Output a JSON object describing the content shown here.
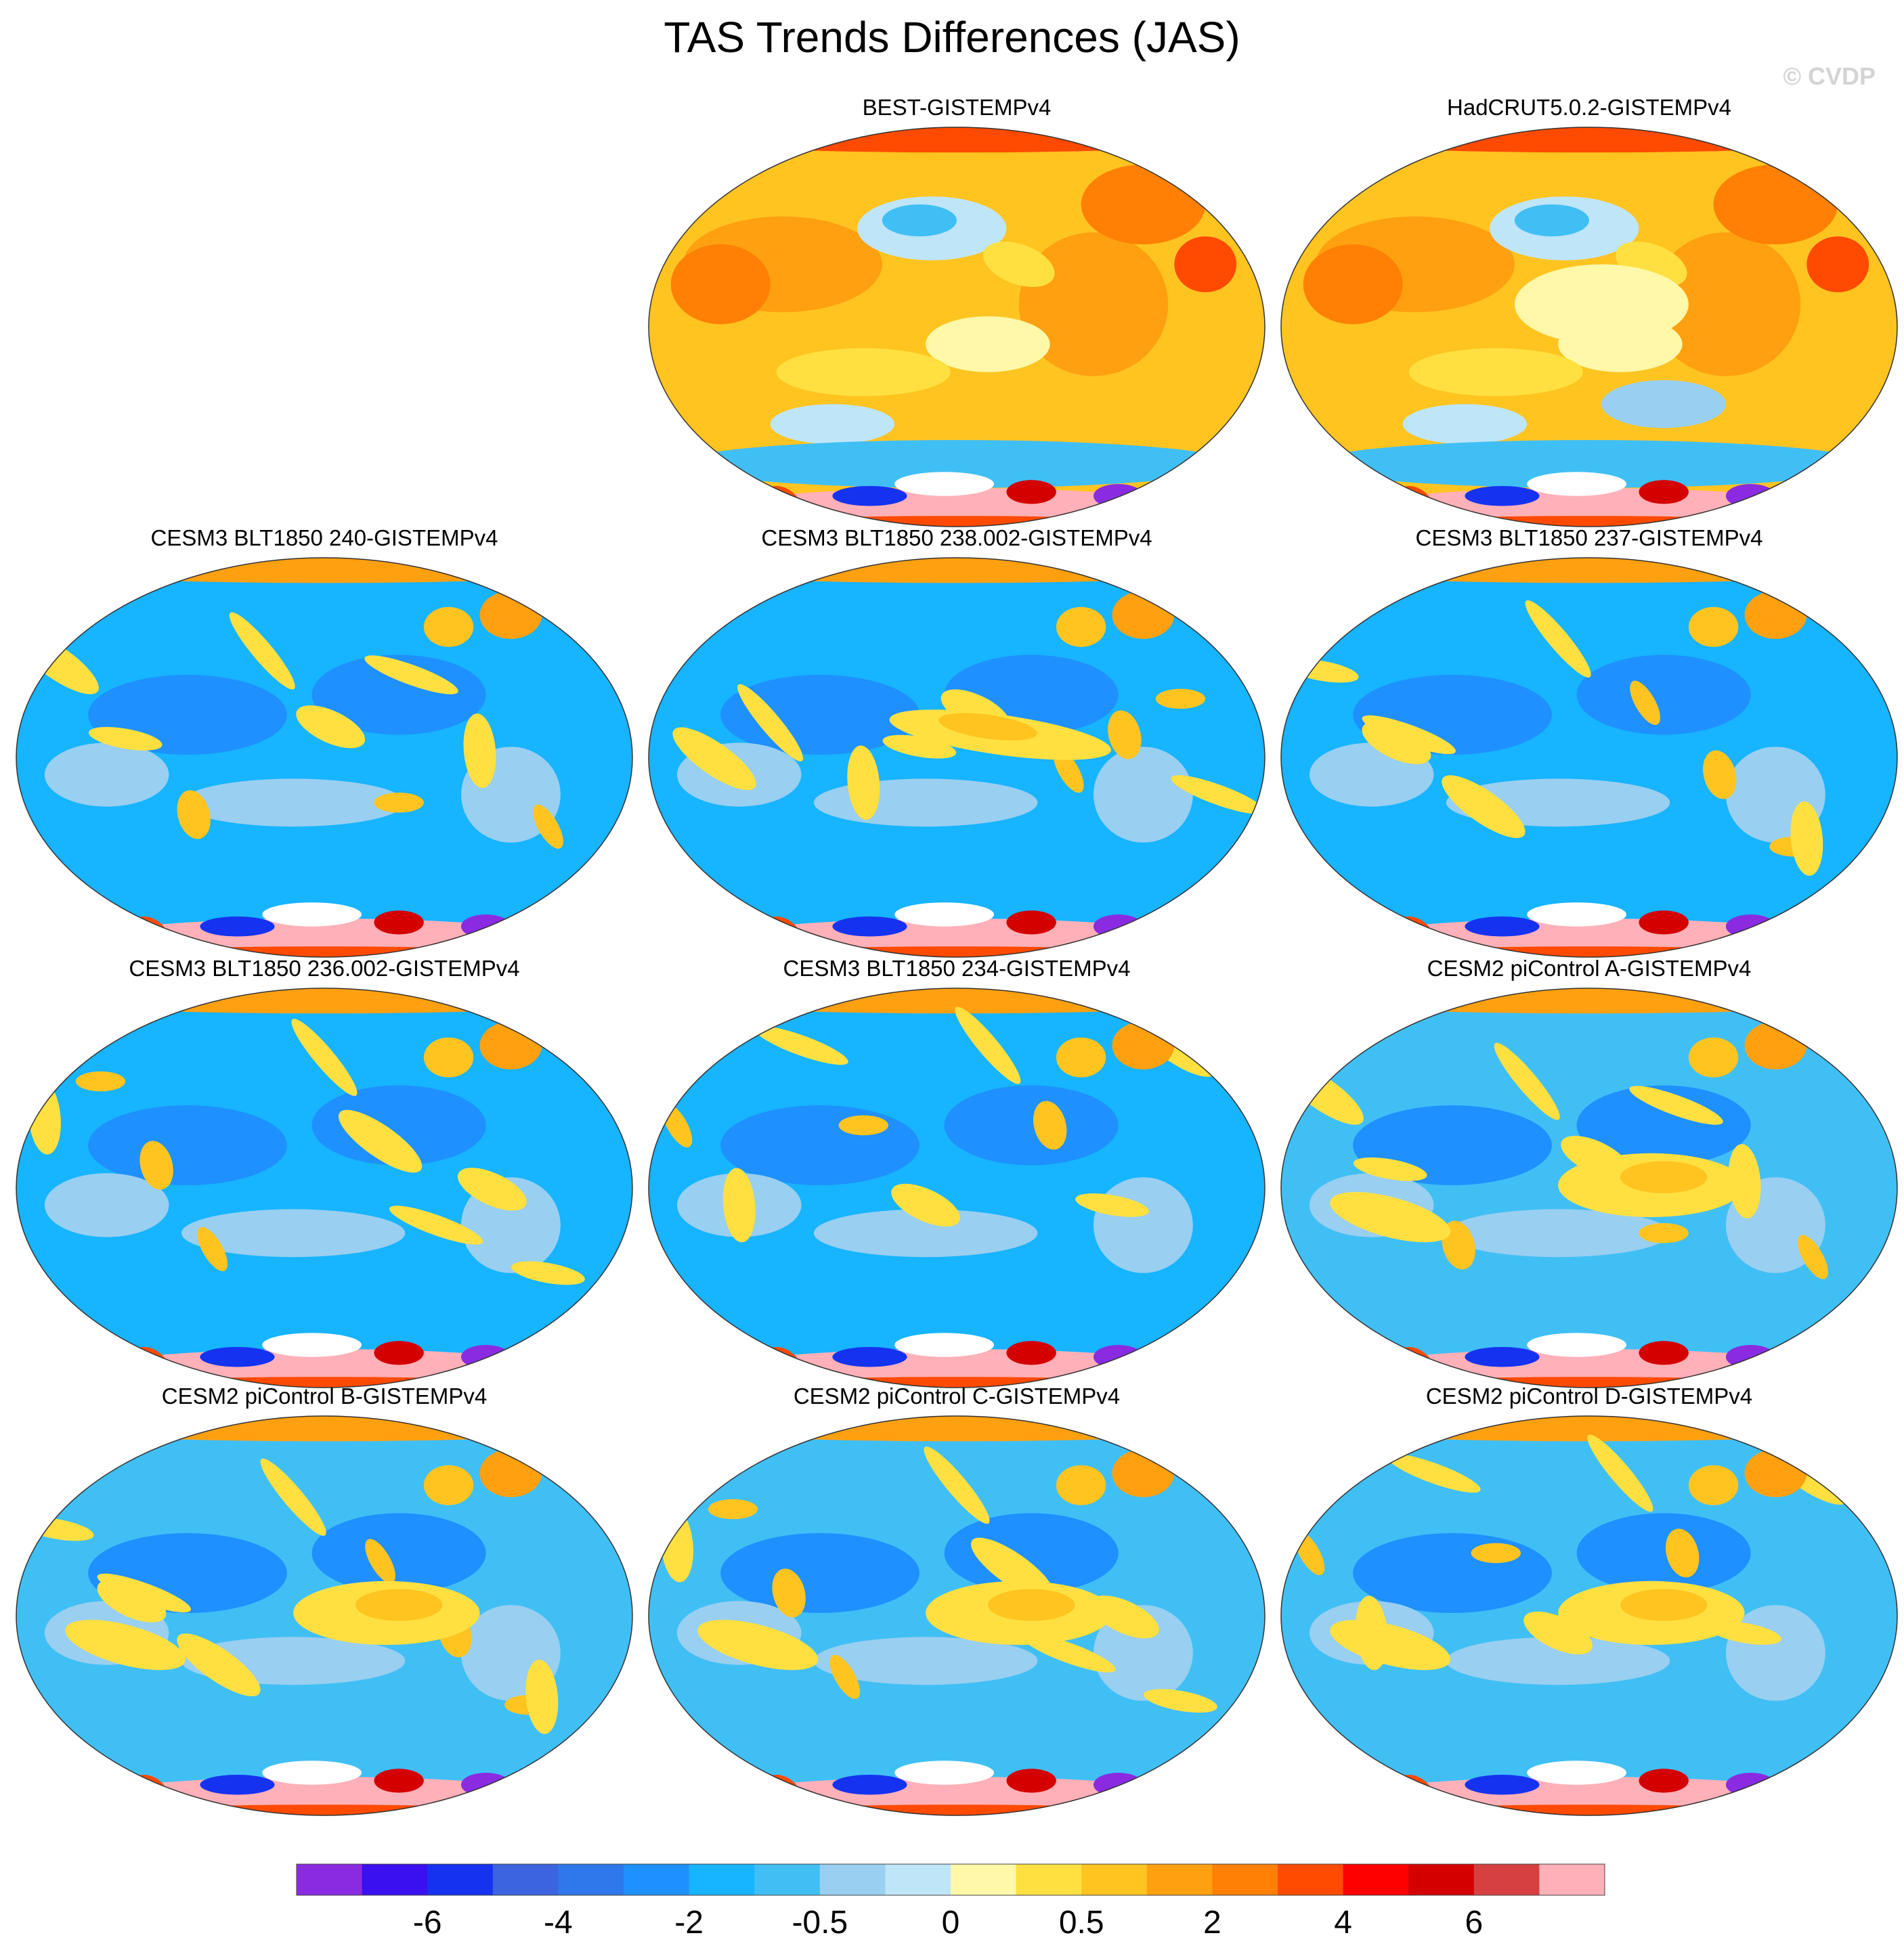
{
  "title": "TAS Trends Differences (JAS)",
  "watermark": "© CVDP",
  "panels": [
    {
      "label": "BEST-GISTEMPv4",
      "row": 0,
      "col": 1,
      "pattern": "warm-obs-best"
    },
    {
      "label": "HadCRUT5.0.2-GISTEMPv4",
      "row": 0,
      "col": 2,
      "pattern": "warm-obs-had"
    },
    {
      "label": "CESM3 BLT1850 240-GISTEMPv4",
      "row": 1,
      "col": 0,
      "pattern": "cool-a"
    },
    {
      "label": "CESM3 BLT1850 238.002-GISTEMPv4",
      "row": 1,
      "col": 1,
      "pattern": "cool-enso"
    },
    {
      "label": "CESM3 BLT1850 237-GISTEMPv4",
      "row": 1,
      "col": 2,
      "pattern": "cool-b"
    },
    {
      "label": "CESM3 BLT1850 236.002-GISTEMPv4",
      "row": 2,
      "col": 0,
      "pattern": "cool-c"
    },
    {
      "label": "CESM3 BLT1850 234-GISTEMPv4",
      "row": 2,
      "col": 1,
      "pattern": "cool-d"
    },
    {
      "label": "CESM2 piControl A-GISTEMPv4",
      "row": 2,
      "col": 2,
      "pattern": "mixed-a"
    },
    {
      "label": "CESM2 piControl B-GISTEMPv4",
      "row": 3,
      "col": 0,
      "pattern": "mixed-b"
    },
    {
      "label": "CESM2 piControl C-GISTEMPv4",
      "row": 3,
      "col": 1,
      "pattern": "mixed-c"
    },
    {
      "label": "CESM2 piControl D-GISTEMPv4",
      "row": 3,
      "col": 2,
      "pattern": "mixed-d"
    }
  ],
  "colorbar": {
    "colors": [
      "#8a2be2",
      "#3a10f0",
      "#1432f0",
      "#3c64e0",
      "#2f78eb",
      "#1e90ff",
      "#17b4ff",
      "#40bff5",
      "#99cff0",
      "#bfe5f8",
      "#fff8a8",
      "#ffe040",
      "#ffc420",
      "#ffa010",
      "#ff8005",
      "#ff4a00",
      "#ff0000",
      "#d40000",
      "#d64040",
      "#ffb0b8"
    ],
    "tick_labels": [
      "-6",
      "-4",
      "-2",
      "-0.5",
      "0",
      "0.5",
      "2",
      "4",
      "6"
    ]
  }
}
